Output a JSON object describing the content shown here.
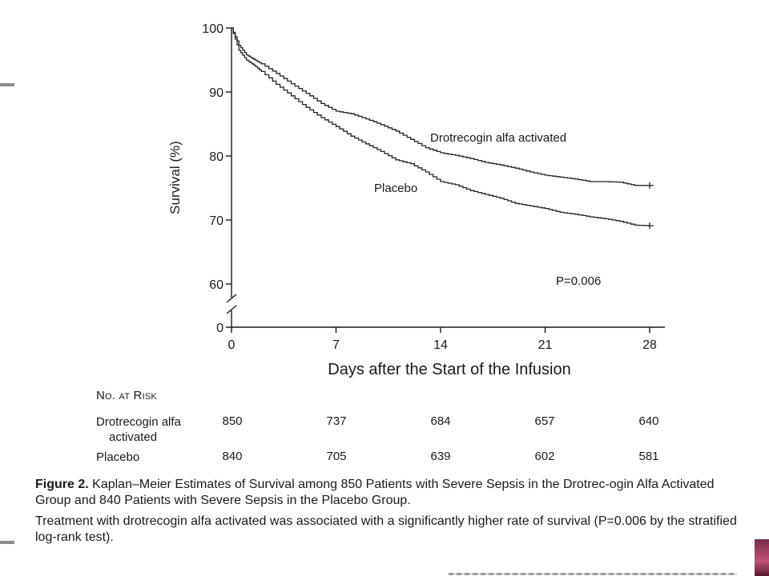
{
  "chart_data": {
    "type": "line",
    "xlabel": "Days after the Start of the Infusion",
    "ylabel": "Survival (%)",
    "xlim": [
      0,
      28
    ],
    "ylim": [
      60,
      100
    ],
    "x_ticks": [
      0,
      7,
      14,
      21,
      28
    ],
    "y_ticks": [
      60,
      70,
      80,
      90,
      100
    ],
    "y_break_tick": 0,
    "grid": false,
    "series": [
      {
        "name": "Drotrecogin alfa activated",
        "x": [
          0,
          0.5,
          1,
          1.5,
          2,
          3,
          4,
          5,
          6,
          7,
          8,
          9,
          10,
          11,
          12,
          13,
          14,
          15,
          16,
          17,
          18,
          19,
          20,
          21,
          22,
          23,
          24,
          25,
          26,
          27,
          28
        ],
        "y": [
          100,
          97.3,
          95.8,
          95.1,
          94.4,
          92.9,
          91.3,
          89.8,
          88.2,
          87.0,
          86.6,
          85.8,
          84.9,
          83.9,
          82.6,
          81.3,
          80.5,
          80.1,
          79.6,
          79.0,
          78.6,
          78.1,
          77.5,
          77.0,
          76.7,
          76.4,
          76.0,
          76.0,
          75.9,
          75.4,
          75.4
        ]
      },
      {
        "name": "Placebo",
        "x": [
          0,
          0.5,
          1,
          1.5,
          2,
          3,
          4,
          5,
          6,
          7,
          8,
          9,
          10,
          11,
          12,
          13,
          14,
          15,
          16,
          17,
          18,
          19,
          20,
          21,
          22,
          23,
          24,
          25,
          26,
          27,
          28
        ],
        "y": [
          100,
          96.5,
          95.0,
          94.2,
          93.2,
          91.2,
          89.4,
          87.6,
          86.0,
          84.6,
          83.1,
          81.9,
          80.7,
          79.4,
          78.8,
          77.5,
          76.0,
          75.5,
          74.6,
          74.0,
          73.4,
          72.6,
          72.2,
          71.8,
          71.2,
          70.9,
          70.5,
          70.2,
          69.8,
          69.2,
          69.1
        ]
      }
    ],
    "annotations": [
      {
        "text": "P=0.006",
        "x": 22.5,
        "y": 62.9
      }
    ]
  },
  "risk_table": {
    "title": "No. at Risk",
    "days": [
      0,
      7,
      14,
      21,
      28
    ],
    "rows": [
      {
        "label_line1": "Drotrecogin alfa",
        "label_line2": "activated",
        "values": [
          "850",
          "737",
          "684",
          "657",
          "640"
        ]
      },
      {
        "label_line1": "Placebo",
        "label_line2": "",
        "values": [
          "840",
          "705",
          "639",
          "602",
          "581"
        ]
      }
    ]
  },
  "caption": {
    "figure_label": "Figure 2.",
    "title_text": "Kaplan–Meier Estimates of Survival among 850 Patients with Severe Sepsis in the Drotrec-ogin Alfa Activated Group and 840 Patients with Severe Sepsis in the Placebo Group.",
    "body_text": "Treatment with drotrecogin alfa activated was associated with a significantly higher rate of survival (P=0.006 by the stratified log-rank test)."
  }
}
